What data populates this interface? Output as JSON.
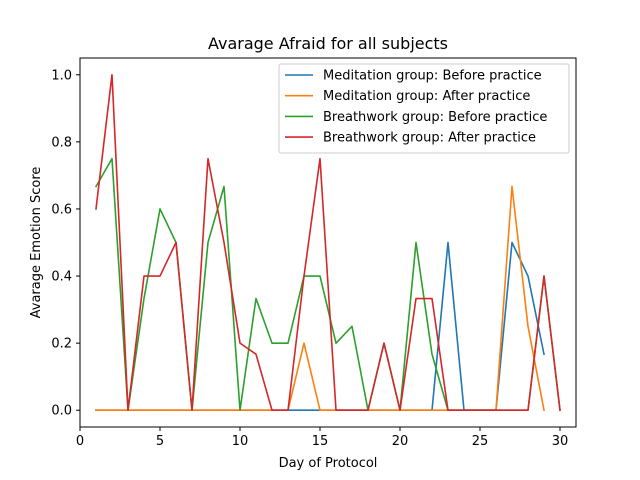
{
  "chart_data": {
    "type": "line",
    "title": "Avarage Afraid for all subjects",
    "xlabel": "Day of Protocol",
    "ylabel": "Avarage Emotion Score",
    "xlim": [
      0,
      31
    ],
    "ylim": [
      -0.05,
      1.05
    ],
    "xticks": [
      0,
      5,
      10,
      15,
      20,
      25,
      30
    ],
    "yticks": [
      0.0,
      0.2,
      0.4,
      0.6,
      0.8,
      1.0
    ],
    "legend_position": "top-right",
    "grid": false,
    "series": [
      {
        "name": "Meditation group: Before practice",
        "color": "#1f77b4",
        "x": [
          1,
          2,
          3,
          4,
          5,
          6,
          7,
          8,
          9,
          10,
          11,
          12,
          13,
          14,
          15,
          16,
          17,
          18,
          19,
          20,
          21,
          22,
          23,
          24,
          25,
          26,
          27,
          28,
          29
        ],
        "y": [
          0,
          0,
          0,
          0,
          0,
          0,
          0,
          0,
          0,
          0,
          0,
          0,
          0,
          0,
          0,
          0,
          0,
          0,
          0,
          0,
          0,
          0,
          0.5,
          0,
          0,
          0,
          0.5,
          0.4,
          0.167
        ]
      },
      {
        "name": "Meditation group: After practice",
        "color": "#ff7f0e",
        "x": [
          1,
          2,
          3,
          4,
          5,
          6,
          7,
          8,
          9,
          10,
          11,
          12,
          13,
          14,
          15,
          16,
          17,
          18,
          19,
          20,
          21,
          22,
          23,
          24,
          25,
          26,
          27,
          28,
          29
        ],
        "y": [
          0,
          0,
          0,
          0,
          0,
          0,
          0,
          0,
          0,
          0,
          0,
          0,
          0,
          0.2,
          0,
          0,
          0,
          0,
          0,
          0,
          0,
          0,
          0,
          0,
          0,
          0,
          0.667,
          0.25,
          0
        ]
      },
      {
        "name": "Breathwork group: Before practice",
        "color": "#2ca02c",
        "x": [
          1,
          2,
          3,
          4,
          5,
          6,
          7,
          8,
          9,
          10,
          11,
          12,
          13,
          14,
          15,
          16,
          17,
          18,
          19,
          20,
          21,
          22,
          23,
          24,
          25,
          26,
          27,
          28,
          29,
          30
        ],
        "y": [
          0.667,
          0.75,
          0,
          0.333,
          0.6,
          0.5,
          0,
          0.5,
          0.667,
          0,
          0.333,
          0.2,
          0.2,
          0.4,
          0.4,
          0.2,
          0.25,
          0,
          0.2,
          0,
          0.5,
          0.167,
          0,
          0,
          0,
          0,
          0,
          0,
          0.4,
          0
        ]
      },
      {
        "name": "Breathwork group: After practice",
        "color": "#d62728",
        "x": [
          1,
          2,
          3,
          4,
          5,
          6,
          7,
          8,
          9,
          10,
          11,
          12,
          13,
          14,
          15,
          16,
          17,
          18,
          19,
          20,
          21,
          22,
          23,
          24,
          25,
          26,
          27,
          28,
          29,
          30
        ],
        "y": [
          0.6,
          1.0,
          0,
          0.4,
          0.4,
          0.5,
          0,
          0.75,
          0.5,
          0.2,
          0.167,
          0,
          0,
          0.4,
          0.75,
          0,
          0,
          0,
          0.2,
          0,
          0.333,
          0.333,
          0,
          0,
          0,
          0,
          0,
          0,
          0.4,
          0
        ]
      }
    ]
  }
}
